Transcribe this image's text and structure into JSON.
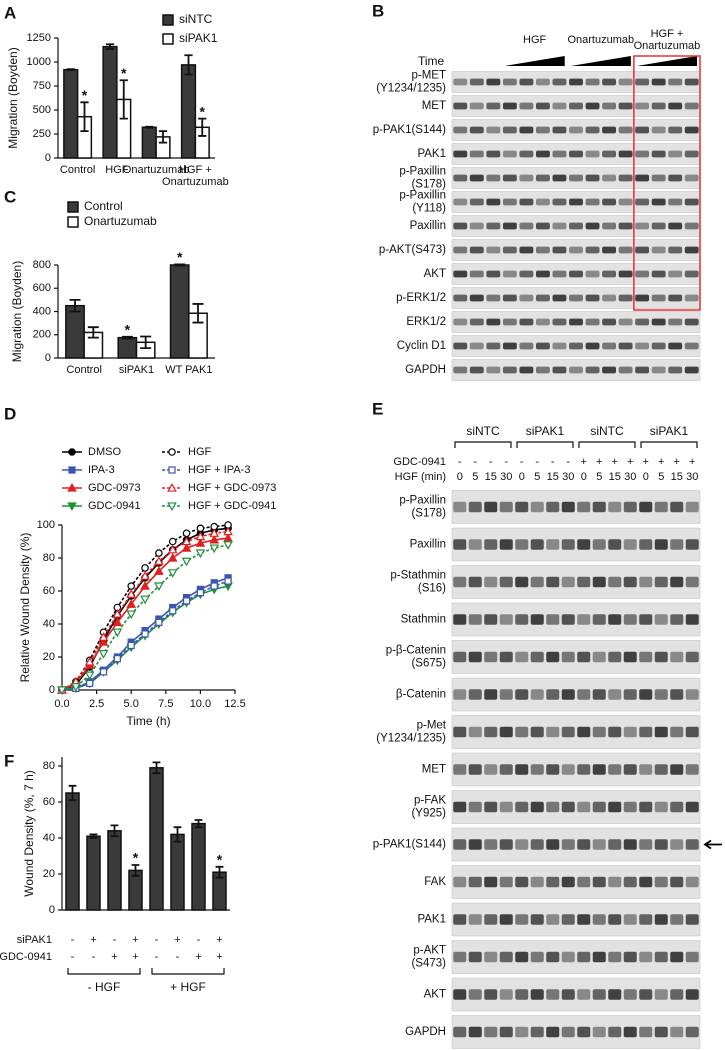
{
  "chart_data": [
    {
      "panel": "A",
      "type": "bar",
      "ylabel": "Migration (Boyden)",
      "categories": [
        "Control",
        "HGF",
        "Onartuzumab",
        "HGF +\nOnartuzumab"
      ],
      "series": [
        {
          "name": "siNTC",
          "color": "#3a3a3a",
          "values": [
            920,
            1160,
            320,
            970
          ],
          "errors": [
            5,
            25,
            5,
            100
          ],
          "annotations": [
            null,
            null,
            null,
            null
          ]
        },
        {
          "name": "siPAK1",
          "color": "#ffffff",
          "values": [
            430,
            610,
            220,
            320
          ],
          "errors": [
            150,
            200,
            60,
            90
          ],
          "annotations": [
            "*",
            "*",
            null,
            "*"
          ]
        }
      ],
      "ylim": [
        0,
        1250
      ],
      "yticks": [
        0,
        250,
        500,
        750,
        1000,
        1250
      ],
      "legend": "top-right"
    },
    {
      "panel": "C",
      "type": "bar",
      "ylabel": "Migration (Boyden)",
      "categories": [
        "Control",
        "siPAK1",
        "WT PAK1"
      ],
      "series": [
        {
          "name": "Control",
          "color": "#3a3a3a",
          "values": [
            450,
            175,
            800
          ],
          "errors": [
            50,
            8,
            5
          ],
          "annotations": [
            null,
            "*",
            "*"
          ]
        },
        {
          "name": "Onartuzumab",
          "color": "#ffffff",
          "values": [
            220,
            135,
            385
          ],
          "errors": [
            45,
            50,
            80
          ],
          "annotations": [
            null,
            null,
            null
          ]
        }
      ],
      "ylim": [
        0,
        800
      ],
      "yticks": [
        0,
        200,
        400,
        600,
        800
      ],
      "legend": "top-left"
    },
    {
      "panel": "D",
      "type": "line",
      "xlabel": "Time (h)",
      "ylabel": "Relative Wound Density (%)",
      "x": [
        0,
        1,
        2,
        3,
        4,
        5,
        6,
        7,
        8,
        9,
        10,
        11,
        12
      ],
      "series": [
        {
          "name": "DMSO",
          "color": "#000000",
          "marker": "circle",
          "filled": true,
          "dashed": false,
          "values": [
            0,
            3,
            14,
            30,
            45,
            57,
            68,
            77,
            85,
            91,
            95,
            97,
            98
          ]
        },
        {
          "name": "IPA-3",
          "color": "#3a55b4",
          "marker": "square",
          "filled": true,
          "dashed": false,
          "values": [
            0,
            1,
            5,
            12,
            20,
            29,
            36,
            43,
            50,
            56,
            61,
            65,
            68
          ]
        },
        {
          "name": "GDC-0973",
          "color": "#e02020",
          "marker": "triangle-up",
          "filled": true,
          "dashed": false,
          "values": [
            0,
            4,
            15,
            29,
            41,
            52,
            63,
            72,
            80,
            86,
            89,
            91,
            92
          ]
        },
        {
          "name": "GDC-0941",
          "color": "#1f8f3a",
          "marker": "triangle-down",
          "filled": true,
          "dashed": false,
          "values": [
            0,
            1,
            4,
            11,
            18,
            26,
            33,
            40,
            47,
            53,
            58,
            61,
            63
          ]
        },
        {
          "name": "HGF",
          "color": "#000000",
          "marker": "circle",
          "filled": false,
          "dashed": true,
          "values": [
            0,
            5,
            18,
            35,
            50,
            63,
            74,
            83,
            90,
            95,
            98,
            99,
            100
          ]
        },
        {
          "name": "HGF + IPA-3",
          "color": "#3a55b4",
          "marker": "square",
          "filled": false,
          "dashed": true,
          "values": [
            0,
            1,
            4,
            11,
            19,
            27,
            34,
            41,
            48,
            54,
            59,
            63,
            66
          ]
        },
        {
          "name": "HGF + GDC-0973",
          "color": "#e02020",
          "marker": "triangle-up",
          "filled": false,
          "dashed": true,
          "values": [
            0,
            5,
            17,
            32,
            46,
            58,
            69,
            78,
            85,
            90,
            93,
            95,
            96
          ]
        },
        {
          "name": "HGF + GDC-0941",
          "color": "#1f8f3a",
          "marker": "triangle-down",
          "filled": false,
          "dashed": true,
          "values": [
            0,
            2,
            9,
            22,
            35,
            46,
            55,
            63,
            71,
            78,
            83,
            86,
            88
          ]
        }
      ],
      "xlim": [
        0,
        12.5
      ],
      "xticks": [
        {
          "value": 0,
          "label": "0.0"
        },
        2.5,
        {
          "value": 5,
          "label": "5.0"
        },
        7.5,
        {
          "value": 10,
          "label": "10.0"
        },
        12.5
      ],
      "ylim": [
        0,
        100
      ],
      "yticks": [
        0,
        20,
        40,
        60,
        80,
        100
      ],
      "legend": "top"
    },
    {
      "panel": "F",
      "type": "bar",
      "ylabel": "Wound Density (%, 7 h)",
      "categories": [
        null,
        null,
        null,
        null,
        null,
        null,
        null,
        null
      ],
      "values": [
        65,
        41,
        44,
        22,
        79,
        42,
        48,
        21
      ],
      "errors": [
        4,
        1,
        3,
        3,
        3,
        4,
        2,
        3
      ],
      "annotations": [
        null,
        null,
        null,
        "*",
        null,
        null,
        null,
        "*"
      ],
      "color": "#3a3a3a",
      "ylim": [
        0,
        85
      ],
      "yticks": [
        0,
        20,
        40,
        60,
        80
      ],
      "conditions": [
        {
          "label": "siPAK1",
          "values": [
            "-",
            "+",
            "-",
            "+",
            "-",
            "+",
            "-",
            "+"
          ]
        },
        {
          "label": "GDC-0941",
          "values": [
            "-",
            "-",
            "+",
            "+",
            "-",
            "-",
            "+",
            "+"
          ]
        }
      ],
      "groups": [
        "- HGF",
        "+ HGF"
      ]
    }
  ],
  "blots": [
    {
      "panel": "B",
      "time_label": "Time",
      "groups": [
        "HGF",
        "Onartuzumab",
        "HGF +\nOnartuzumab"
      ],
      "rows": [
        "p-MET\n(Y1234/1235)",
        "MET",
        "p-PAK1(S144)",
        "PAK1",
        "p-Paxillin\n(S178)",
        "p-Paxillin\n(Y118)",
        "Paxillin",
        "p-AKT(S473)",
        "AKT",
        "p-ERK1/2",
        "ERK1/2",
        "Cyclin D1",
        "GAPDH"
      ]
    },
    {
      "panel": "E",
      "groups": [
        "siNTC",
        "siPAK1",
        "siNTC",
        "siPAK1"
      ],
      "conditions": [
        {
          "label": "GDC-0941",
          "values": [
            "-",
            "-",
            "-",
            "-",
            "-",
            "-",
            "-",
            "-",
            "+",
            "+",
            "+",
            "+",
            "+",
            "+",
            "+",
            "+"
          ]
        },
        {
          "label": "HGF (min)",
          "values": [
            0,
            5,
            15,
            30,
            0,
            5,
            15,
            30,
            0,
            5,
            15,
            30,
            0,
            5,
            15,
            30
          ]
        }
      ],
      "rows": [
        "p-Paxillin\n(S178)",
        "Paxillin",
        "p-Stathmin\n(S16)",
        "Stathmin",
        "p-β-Catenin\n(S675)",
        "β-Catenin",
        "p-Met\n(Y1234/1235)",
        "MET",
        "p-FAK\n(Y925)",
        "p-PAK1(S144)",
        "FAK",
        "PAK1",
        "p-AKT\n(S473)",
        "AKT",
        "GAPDH"
      ]
    }
  ]
}
